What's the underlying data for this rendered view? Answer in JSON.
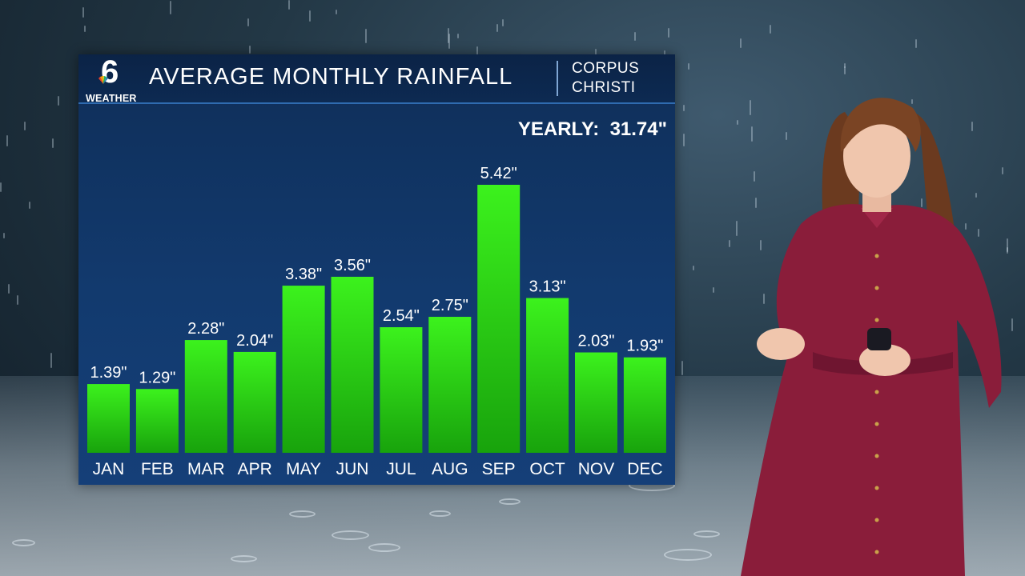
{
  "station": {
    "logo_number": "6",
    "logo_text": "WEATHER"
  },
  "header": {
    "title": "AVERAGE MONTHLY RAINFALL",
    "location_line1": "CORPUS",
    "location_line2": "CHRISTI"
  },
  "yearly": {
    "label": "YEARLY:",
    "value": "31.74\""
  },
  "colors": {
    "bar_top": "#3cf21d",
    "bar_bottom": "#18a30c",
    "panel": "#123a6e"
  },
  "chart_data": {
    "type": "bar",
    "title": "AVERAGE MONTHLY RAINFALL",
    "categories": [
      "JAN",
      "FEB",
      "MAR",
      "APR",
      "MAY",
      "JUN",
      "JUL",
      "AUG",
      "SEP",
      "OCT",
      "NOV",
      "DEC"
    ],
    "values": [
      1.39,
      1.29,
      2.28,
      2.04,
      3.38,
      3.56,
      2.54,
      2.75,
      5.42,
      3.13,
      2.03,
      1.93
    ],
    "value_labels": [
      "1.39\"",
      "1.29\"",
      "2.28\"",
      "2.04\"",
      "3.38\"",
      "3.56\"",
      "2.54\"",
      "2.75\"",
      "5.42\"",
      "3.13\"",
      "2.03\"",
      "1.93\""
    ],
    "ylim": [
      0,
      5.42
    ],
    "grid": false,
    "xlabel": "",
    "ylabel": ""
  }
}
